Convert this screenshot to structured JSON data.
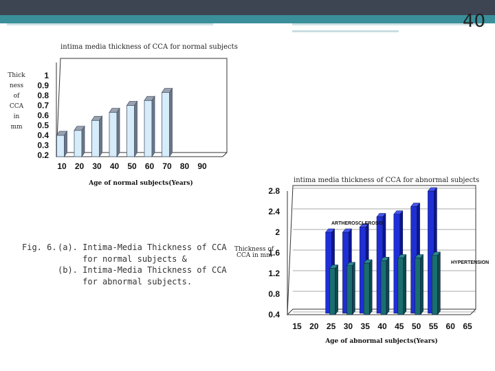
{
  "slide": {
    "number": "40"
  },
  "caption": {
    "fig_label": "Fig. 6.",
    "lines": [
      "(a). Intima-Media Thickness of CCA",
      "     for normal subjects &",
      "(b). Intima-Media Thickness of CCA",
      "     for abnormal subjects."
    ]
  },
  "colors": {
    "topbar": "#3d4452",
    "accent_bar": "#3a8f9a",
    "normal_bar": "#d6ecfa",
    "artero_bar": "#1f2fd6",
    "hyper_bar": "#1a6e6e"
  },
  "chart_data": [
    {
      "type": "bar",
      "title": "intima media thickness of CCA for normal subjects",
      "panel": "(a)",
      "categories": [
        "10",
        "20",
        "30",
        "40",
        "50",
        "60",
        "70",
        "80",
        "90"
      ],
      "values": [
        0.4,
        0.45,
        0.55,
        0.63,
        0.7,
        0.75,
        0.83,
        null,
        null
      ],
      "ylabel_lines": [
        "Thick",
        "ness",
        "of",
        "CCA",
        "in",
        "mm"
      ],
      "yticks": [
        "1",
        "0.9",
        "0.8",
        "0.7",
        "0.6",
        "0.5",
        "0.4",
        "0.3",
        "0.2"
      ],
      "xlabel": "Age of normal subjects(Years)",
      "ylim": [
        0.2,
        1.0
      ]
    },
    {
      "type": "bar",
      "title": "intima media thickness of CCA for abnormal subjects",
      "panel": "(b)",
      "categories": [
        "15",
        "20",
        "25",
        "30",
        "35",
        "40",
        "45",
        "50",
        "55",
        "60",
        "65"
      ],
      "series": [
        {
          "name": "ARTHEROSCLEROSIS",
          "values": [
            null,
            null,
            2.0,
            2.0,
            2.1,
            2.3,
            2.35,
            2.5,
            2.8,
            null,
            null
          ]
        },
        {
          "name": "HYPERTENSION",
          "values": [
            null,
            null,
            1.3,
            1.35,
            1.4,
            1.45,
            1.5,
            1.5,
            1.55,
            null,
            null
          ]
        }
      ],
      "ylabel": "Thickness of CCA in mm",
      "yticks": [
        "2.8",
        "2.4",
        "2",
        "1.6",
        "1.2",
        "0.8",
        "0.4"
      ],
      "xlabel": "Age of abnormal subjects(Years)",
      "ylim": [
        0.4,
        2.8
      ]
    }
  ]
}
